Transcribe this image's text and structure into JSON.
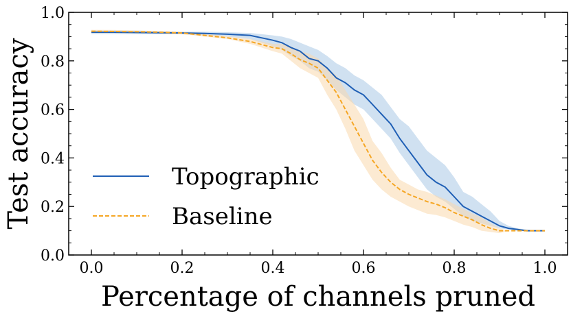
{
  "chart_data": {
    "type": "line",
    "title": "",
    "xlabel": "Percentage of channels pruned",
    "ylabel": "Test accuracy",
    "xlim": [
      -0.05,
      1.05
    ],
    "ylim": [
      0.0,
      1.0
    ],
    "xticks": [
      "0.0",
      "0.2",
      "0.4",
      "0.6",
      "0.8",
      "1.0"
    ],
    "yticks": [
      "0.0",
      "0.2",
      "0.4",
      "0.6",
      "0.8",
      "1.0"
    ],
    "grid": false,
    "legend_position": "center-left",
    "x": [
      0.0,
      0.05,
      0.1,
      0.15,
      0.2,
      0.25,
      0.3,
      0.35,
      0.4,
      0.42,
      0.44,
      0.46,
      0.48,
      0.5,
      0.52,
      0.54,
      0.56,
      0.58,
      0.6,
      0.62,
      0.64,
      0.66,
      0.68,
      0.7,
      0.72,
      0.74,
      0.76,
      0.78,
      0.8,
      0.82,
      0.84,
      0.86,
      0.88,
      0.9,
      0.92,
      0.94,
      0.96,
      0.98,
      1.0
    ],
    "series": [
      {
        "name": "Topographic",
        "color": "#1f5fb5",
        "band_color": "#aac8e6",
        "style": "solid",
        "values": [
          0.918,
          0.918,
          0.917,
          0.916,
          0.915,
          0.913,
          0.91,
          0.905,
          0.885,
          0.875,
          0.855,
          0.84,
          0.81,
          0.8,
          0.77,
          0.73,
          0.71,
          0.68,
          0.66,
          0.62,
          0.58,
          0.54,
          0.48,
          0.43,
          0.38,
          0.33,
          0.3,
          0.28,
          0.24,
          0.2,
          0.18,
          0.16,
          0.14,
          0.12,
          0.11,
          0.105,
          0.1,
          0.1,
          0.1
        ],
        "lower": [
          0.91,
          0.91,
          0.91,
          0.91,
          0.91,
          0.905,
          0.9,
          0.89,
          0.86,
          0.845,
          0.82,
          0.8,
          0.77,
          0.755,
          0.72,
          0.68,
          0.65,
          0.62,
          0.6,
          0.56,
          0.52,
          0.48,
          0.42,
          0.37,
          0.32,
          0.27,
          0.24,
          0.22,
          0.19,
          0.16,
          0.14,
          0.13,
          0.12,
          0.11,
          0.105,
          0.1,
          0.1,
          0.1,
          0.1
        ],
        "upper": [
          0.925,
          0.925,
          0.925,
          0.922,
          0.92,
          0.92,
          0.918,
          0.915,
          0.905,
          0.9,
          0.89,
          0.875,
          0.86,
          0.845,
          0.82,
          0.79,
          0.77,
          0.74,
          0.72,
          0.69,
          0.66,
          0.61,
          0.56,
          0.53,
          0.48,
          0.43,
          0.4,
          0.37,
          0.32,
          0.26,
          0.24,
          0.21,
          0.18,
          0.14,
          0.12,
          0.11,
          0.105,
          0.1,
          0.1
        ]
      },
      {
        "name": "Baseline",
        "color": "#f5a623",
        "band_color": "#f9d9ad",
        "style": "dashed",
        "values": [
          0.922,
          0.921,
          0.92,
          0.918,
          0.915,
          0.905,
          0.895,
          0.88,
          0.855,
          0.85,
          0.83,
          0.805,
          0.79,
          0.77,
          0.72,
          0.67,
          0.6,
          0.53,
          0.46,
          0.39,
          0.34,
          0.3,
          0.27,
          0.25,
          0.235,
          0.22,
          0.21,
          0.195,
          0.175,
          0.16,
          0.145,
          0.125,
          0.11,
          0.1,
          0.1,
          0.1,
          0.1,
          0.1,
          0.1
        ],
        "lower": [
          0.915,
          0.915,
          0.915,
          0.912,
          0.91,
          0.9,
          0.89,
          0.87,
          0.84,
          0.83,
          0.8,
          0.77,
          0.75,
          0.73,
          0.66,
          0.6,
          0.52,
          0.43,
          0.37,
          0.31,
          0.27,
          0.24,
          0.22,
          0.2,
          0.185,
          0.17,
          0.165,
          0.155,
          0.14,
          0.125,
          0.115,
          0.1,
          0.095,
          0.09,
          0.1,
          0.1,
          0.1,
          0.1,
          0.1
        ],
        "upper": [
          0.928,
          0.927,
          0.925,
          0.923,
          0.92,
          0.912,
          0.902,
          0.89,
          0.87,
          0.87,
          0.86,
          0.84,
          0.83,
          0.81,
          0.77,
          0.74,
          0.68,
          0.62,
          0.56,
          0.47,
          0.42,
          0.36,
          0.31,
          0.29,
          0.27,
          0.26,
          0.245,
          0.23,
          0.21,
          0.19,
          0.17,
          0.155,
          0.13,
          0.11,
          0.1,
          0.1,
          0.1,
          0.1,
          0.1
        ]
      }
    ]
  }
}
